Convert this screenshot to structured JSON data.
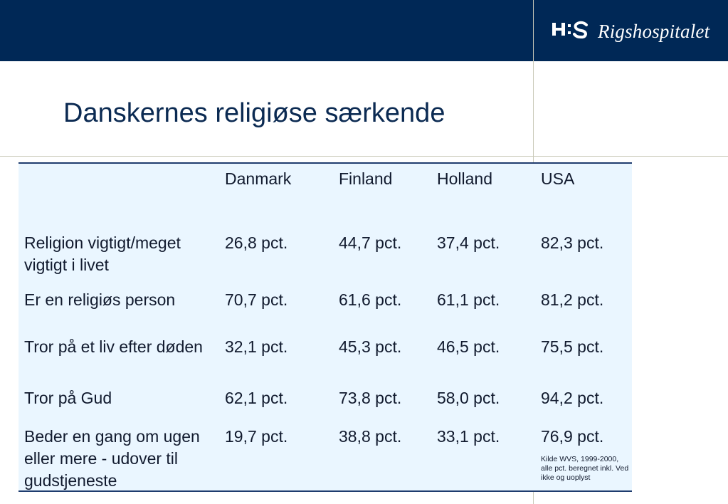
{
  "brand": {
    "logo_mark": "H:S",
    "name": "Rigshospitalet",
    "header_color": "#002856"
  },
  "slide": {
    "title": "Danskernes religiøse særkende"
  },
  "table": {
    "columns": [
      "",
      "Danmark",
      "Finland",
      "Holland",
      "USA"
    ],
    "rows": [
      {
        "label": "Religion vigtigt/meget vigtigt i livet",
        "values": [
          "26,8 pct.",
          "44,7 pct.",
          "37,4 pct.",
          "82,3 pct."
        ]
      },
      {
        "label": "Er en religiøs person",
        "values": [
          "70,7 pct.",
          "61,6 pct.",
          "61,1 pct.",
          "81,2 pct."
        ]
      },
      {
        "label": "Tror på et liv efter døden",
        "values": [
          "32,1 pct.",
          "45,3 pct.",
          "46,5 pct.",
          "75,5 pct."
        ]
      },
      {
        "label": "Tror på Gud",
        "values": [
          "62,1 pct.",
          "73,8 pct.",
          "58,0 pct.",
          "94,2 pct."
        ]
      },
      {
        "label": "Beder en gang om ugen eller mere - udover til gudstjeneste",
        "values": [
          "19,7 pct.",
          "38,8 pct.",
          "33,1 pct.",
          "76,9 pct."
        ]
      }
    ],
    "source_note": "Kilde WVS, 1999-2000, alle pct. beregnet inkl. Ved ikke og uoplyst"
  }
}
